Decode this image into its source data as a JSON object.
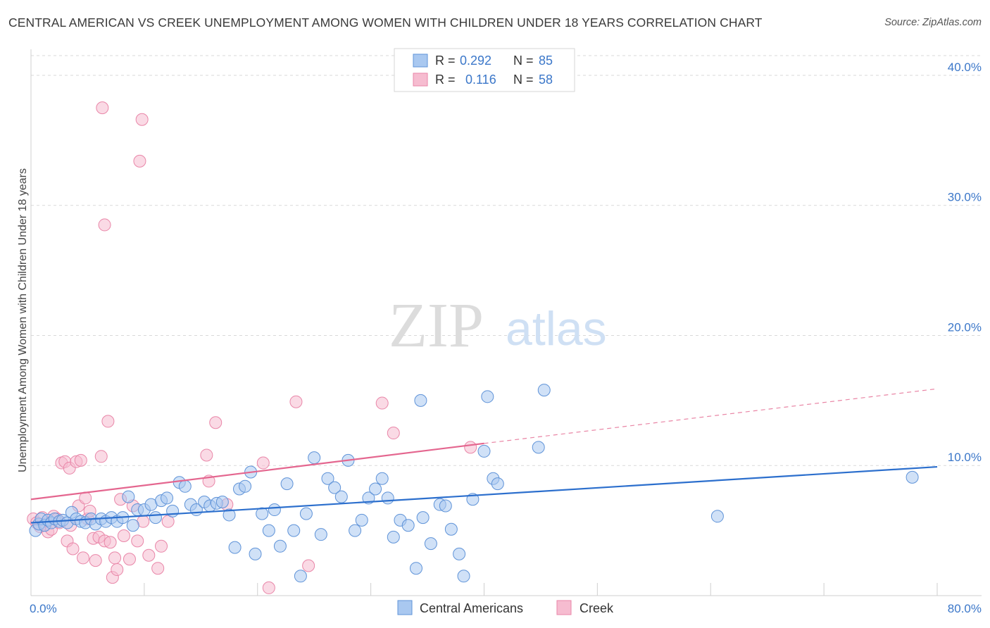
{
  "header": {
    "title": "CENTRAL AMERICAN VS CREEK UNEMPLOYMENT AMONG WOMEN WITH CHILDREN UNDER 18 YEARS CORRELATION CHART",
    "source": "Source: ZipAtlas.com"
  },
  "watermark": {
    "zip": "ZIP",
    "atlas": "atlas"
  },
  "colors": {
    "blue_fill": "#a9c8f0",
    "blue_stroke": "#5f93d8",
    "blue_line": "#2c6fcd",
    "pink_fill": "#f6bcd0",
    "pink_stroke": "#e986a8",
    "pink_line": "#e4668f",
    "grid": "#d9d9d9",
    "tick_label": "#3b77c9"
  },
  "legend": {
    "rows": [
      {
        "r_label": "R =",
        "r_value": "0.292",
        "n_label": "N =",
        "n_value": "85"
      },
      {
        "r_label": "R =",
        "r_value": "0.116",
        "n_label": "N =",
        "n_value": "58"
      }
    ]
  },
  "bottom_legend": {
    "series1": "Central Americans",
    "series2": "Creek"
  },
  "chart_data": {
    "type": "scatter",
    "title": "CENTRAL AMERICAN VS CREEK UNEMPLOYMENT AMONG WOMEN WITH CHILDREN UNDER 18 YEARS CORRELATION CHART",
    "xlabel": "",
    "ylabel": "Unemployment Among Women with Children Under 18 years",
    "xlim": [
      0,
      80
    ],
    "ylim": [
      0,
      42
    ],
    "x_tick_labels": [
      "0.0%",
      "80.0%"
    ],
    "y_ticks": [
      10,
      20,
      30,
      40
    ],
    "y_tick_labels": [
      "10.0%",
      "20.0%",
      "30.0%",
      "40.0%"
    ],
    "grid": true,
    "legend_position": "top-center",
    "series": [
      {
        "name": "Central Americans",
        "color": "#a9c8f0",
        "r": 0.292,
        "n": 85,
        "trend": {
          "x": [
            0,
            80
          ],
          "y": [
            5.6,
            9.9
          ]
        },
        "points": [
          [
            0.4,
            5.0
          ],
          [
            0.7,
            5.5
          ],
          [
            0.9,
            5.9
          ],
          [
            1.2,
            5.4
          ],
          [
            1.5,
            5.8
          ],
          [
            1.8,
            5.6
          ],
          [
            2.1,
            5.9
          ],
          [
            2.5,
            5.7
          ],
          [
            2.8,
            5.8
          ],
          [
            3.2,
            5.6
          ],
          [
            3.6,
            6.4
          ],
          [
            4.0,
            5.9
          ],
          [
            4.4,
            5.7
          ],
          [
            4.8,
            5.6
          ],
          [
            5.3,
            5.9
          ],
          [
            5.7,
            5.5
          ],
          [
            6.2,
            5.9
          ],
          [
            6.6,
            5.7
          ],
          [
            7.1,
            6.0
          ],
          [
            7.6,
            5.7
          ],
          [
            8.1,
            6.0
          ],
          [
            8.6,
            7.6
          ],
          [
            9.0,
            5.4
          ],
          [
            9.4,
            6.6
          ],
          [
            10.0,
            6.6
          ],
          [
            10.6,
            7.0
          ],
          [
            11.0,
            6.0
          ],
          [
            11.5,
            7.3
          ],
          [
            12.0,
            7.5
          ],
          [
            12.5,
            6.5
          ],
          [
            13.1,
            8.7
          ],
          [
            13.6,
            8.4
          ],
          [
            14.1,
            7.0
          ],
          [
            14.6,
            6.6
          ],
          [
            15.3,
            7.2
          ],
          [
            15.8,
            6.9
          ],
          [
            16.4,
            7.1
          ],
          [
            16.9,
            7.2
          ],
          [
            17.5,
            6.2
          ],
          [
            18.0,
            3.7
          ],
          [
            18.4,
            8.2
          ],
          [
            18.9,
            8.4
          ],
          [
            19.4,
            9.5
          ],
          [
            19.8,
            3.2
          ],
          [
            20.4,
            6.3
          ],
          [
            21.0,
            5.0
          ],
          [
            21.5,
            6.6
          ],
          [
            22.0,
            3.8
          ],
          [
            22.6,
            8.6
          ],
          [
            23.2,
            5.0
          ],
          [
            23.8,
            1.5
          ],
          [
            24.3,
            6.3
          ],
          [
            25.0,
            10.6
          ],
          [
            25.6,
            4.7
          ],
          [
            26.2,
            9.0
          ],
          [
            26.8,
            8.3
          ],
          [
            27.4,
            7.6
          ],
          [
            28.0,
            10.4
          ],
          [
            28.6,
            5.0
          ],
          [
            29.2,
            5.8
          ],
          [
            29.8,
            7.5
          ],
          [
            30.4,
            8.2
          ],
          [
            31.0,
            9.0
          ],
          [
            31.5,
            7.5
          ],
          [
            32.0,
            4.5
          ],
          [
            32.6,
            5.8
          ],
          [
            33.3,
            5.4
          ],
          [
            34.0,
            2.1
          ],
          [
            34.6,
            6.0
          ],
          [
            34.4,
            15.0
          ],
          [
            35.3,
            4.0
          ],
          [
            36.1,
            7.0
          ],
          [
            36.6,
            6.9
          ],
          [
            37.1,
            5.1
          ],
          [
            37.8,
            3.2
          ],
          [
            38.2,
            1.5
          ],
          [
            39.0,
            7.4
          ],
          [
            40.0,
            11.1
          ],
          [
            40.3,
            15.3
          ],
          [
            40.8,
            9.0
          ],
          [
            41.2,
            8.6
          ],
          [
            44.8,
            11.4
          ],
          [
            45.3,
            15.8
          ],
          [
            60.6,
            6.1
          ],
          [
            77.8,
            9.1
          ]
        ]
      },
      {
        "name": "Creek",
        "color": "#f6bcd0",
        "r": 0.116,
        "n": 58,
        "trend": {
          "x": [
            0,
            40
          ],
          "y": [
            7.4,
            11.7
          ]
        },
        "trend_dashed": {
          "x": [
            40,
            80
          ],
          "y": [
            11.7,
            15.9
          ]
        },
        "points": [
          [
            0.2,
            5.9
          ],
          [
            0.5,
            5.6
          ],
          [
            0.8,
            5.3
          ],
          [
            1.0,
            6.0
          ],
          [
            1.3,
            5.5
          ],
          [
            1.5,
            4.9
          ],
          [
            1.8,
            5.1
          ],
          [
            2.0,
            6.1
          ],
          [
            2.3,
            5.9
          ],
          [
            2.5,
            5.6
          ],
          [
            2.7,
            10.2
          ],
          [
            3.0,
            10.3
          ],
          [
            3.2,
            4.2
          ],
          [
            3.4,
            9.8
          ],
          [
            3.5,
            5.4
          ],
          [
            3.7,
            3.6
          ],
          [
            4.0,
            10.3
          ],
          [
            4.2,
            6.9
          ],
          [
            4.4,
            10.4
          ],
          [
            4.6,
            2.9
          ],
          [
            4.8,
            7.5
          ],
          [
            5.0,
            5.9
          ],
          [
            5.2,
            6.5
          ],
          [
            5.5,
            4.4
          ],
          [
            5.7,
            2.7
          ],
          [
            6.0,
            4.5
          ],
          [
            6.2,
            10.7
          ],
          [
            6.5,
            4.2
          ],
          [
            6.8,
            13.4
          ],
          [
            7.0,
            4.1
          ],
          [
            7.2,
            1.4
          ],
          [
            7.4,
            2.9
          ],
          [
            7.6,
            2.0
          ],
          [
            7.9,
            7.4
          ],
          [
            8.2,
            4.6
          ],
          [
            8.7,
            2.8
          ],
          [
            9.0,
            6.9
          ],
          [
            9.4,
            4.2
          ],
          [
            9.9,
            5.7
          ],
          [
            10.4,
            3.1
          ],
          [
            11.2,
            2.1
          ],
          [
            11.5,
            3.8
          ],
          [
            12.1,
            5.7
          ],
          [
            6.3,
            37.5
          ],
          [
            6.5,
            28.5
          ],
          [
            9.8,
            36.6
          ],
          [
            9.6,
            33.4
          ],
          [
            15.5,
            10.8
          ],
          [
            15.7,
            8.8
          ],
          [
            16.3,
            13.3
          ],
          [
            17.3,
            7.0
          ],
          [
            20.5,
            10.2
          ],
          [
            21.0,
            0.6
          ],
          [
            23.4,
            14.9
          ],
          [
            24.5,
            2.3
          ],
          [
            31.0,
            14.8
          ],
          [
            32.0,
            12.5
          ],
          [
            38.8,
            11.4
          ]
        ]
      }
    ]
  }
}
